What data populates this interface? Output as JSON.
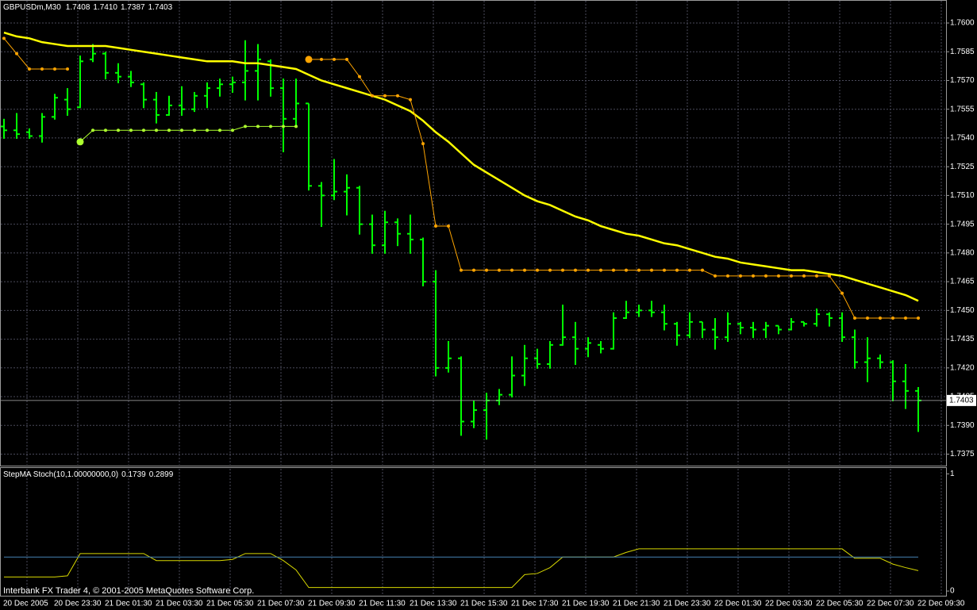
{
  "chart_data": [
    {
      "type": "ohlc",
      "title": "GBPUSDm,M30",
      "last_labels": [
        "1.7408",
        "1.7410",
        "1.7387",
        "1.7403"
      ],
      "footer": "Interbank FX Trader 4, © 2001-2005 MetaQuotes Software Corp.",
      "bar_color": "#00ff00",
      "grid": true,
      "categories": [
        "20 Dec 2005",
        null,
        null,
        null,
        "20 Dec 23:30",
        null,
        null,
        null,
        "21 Dec 01:30",
        null,
        null,
        null,
        "21 Dec 03:30",
        null,
        null,
        null,
        "21 Dec 05:30",
        null,
        null,
        null,
        "21 Dec 07:30",
        null,
        null,
        null,
        "21 Dec 09:30",
        null,
        null,
        null,
        "21 Dec 11:30",
        null,
        null,
        null,
        "21 Dec 13:30",
        null,
        null,
        null,
        "21 Dec 15:30",
        null,
        null,
        null,
        "21 Dec 17:30",
        null,
        null,
        null,
        "21 Dec 19:30",
        null,
        null,
        null,
        "21 Dec 21:30",
        null,
        null,
        null,
        "21 Dec 23:30",
        null,
        null,
        null,
        "22 Dec 01:30",
        null,
        null,
        null,
        "22 Dec 03:30",
        null,
        null,
        null,
        "22 Dec 05:30",
        null,
        null,
        null,
        "22 Dec 07:30",
        null,
        null,
        null,
        "22 Dec 09:30"
      ],
      "ohlc": [
        [
          1.7546,
          1.755,
          1.754,
          1.7544
        ],
        [
          1.7544,
          1.7553,
          1.754,
          1.7542
        ],
        [
          1.7543,
          1.7545,
          1.754,
          1.7541
        ],
        [
          1.7541,
          1.7553,
          1.7538,
          1.7551
        ],
        [
          1.7551,
          1.7563,
          1.755,
          1.7561
        ],
        [
          1.756,
          1.7566,
          1.7552,
          1.7555
        ],
        [
          1.7556,
          1.7583,
          1.7556,
          1.758
        ],
        [
          1.7581,
          1.7589,
          1.758,
          1.7584
        ],
        [
          1.7584,
          1.7585,
          1.7571,
          1.7574
        ],
        [
          1.7574,
          1.7579,
          1.7569,
          1.7572
        ],
        [
          1.7572,
          1.7575,
          1.7567,
          1.7569
        ],
        [
          1.7568,
          1.7569,
          1.7556,
          1.756
        ],
        [
          1.756,
          1.7564,
          1.7548,
          1.7552
        ],
        [
          1.7552,
          1.7562,
          1.7552,
          1.7557
        ],
        [
          1.7557,
          1.7567,
          1.7552,
          1.7555
        ],
        [
          1.7555,
          1.7564,
          1.7554,
          1.7562
        ],
        [
          1.7562,
          1.7569,
          1.7556,
          1.7566
        ],
        [
          1.7566,
          1.7571,
          1.7562,
          1.7568
        ],
        [
          1.7568,
          1.7572,
          1.7564,
          1.7569
        ],
        [
          1.7569,
          1.7591,
          1.756,
          1.7575
        ],
        [
          1.7575,
          1.7589,
          1.756,
          1.7581
        ],
        [
          1.758,
          1.7581,
          1.7562,
          1.7566
        ],
        [
          1.7566,
          1.7571,
          1.7533,
          1.755
        ],
        [
          1.755,
          1.7571,
          1.7546,
          1.7558
        ],
        [
          1.7558,
          1.7558,
          1.7513,
          1.7515
        ],
        [
          1.7515,
          1.7517,
          1.7494,
          1.751
        ],
        [
          1.751,
          1.7529,
          1.7508,
          1.7512
        ],
        [
          1.7512,
          1.7521,
          1.75,
          1.7514
        ],
        [
          1.7514,
          1.7515,
          1.749,
          1.7495
        ],
        [
          1.7495,
          1.75,
          1.748,
          1.7484
        ],
        [
          1.7484,
          1.7502,
          1.748,
          1.7496
        ],
        [
          1.7496,
          1.7498,
          1.7484,
          1.749
        ],
        [
          1.749,
          1.75,
          1.748,
          1.7487
        ],
        [
          1.7487,
          1.7488,
          1.7463,
          1.7465
        ],
        [
          1.7465,
          1.7471,
          1.7416,
          1.742
        ],
        [
          1.742,
          1.7434,
          1.7418,
          1.7425
        ],
        [
          1.7425,
          1.7426,
          1.7385,
          1.7392
        ],
        [
          1.7392,
          1.7403,
          1.7389,
          1.7398
        ],
        [
          1.7398,
          1.7407,
          1.7383,
          1.7403
        ],
        [
          1.7403,
          1.7409,
          1.7401,
          1.7406
        ],
        [
          1.7406,
          1.7426,
          1.7405,
          1.7416
        ],
        [
          1.7416,
          1.7432,
          1.7411,
          1.7425
        ],
        [
          1.7425,
          1.743,
          1.742,
          1.7422
        ],
        [
          1.7422,
          1.7434,
          1.742,
          1.7432
        ],
        [
          1.7432,
          1.7453,
          1.7432,
          1.7436
        ],
        [
          1.7436,
          1.7444,
          1.7422,
          1.743
        ],
        [
          1.743,
          1.7436,
          1.7426,
          1.7433
        ],
        [
          1.7432,
          1.7434,
          1.7428,
          1.743
        ],
        [
          1.743,
          1.7449,
          1.743,
          1.7446
        ],
        [
          1.7446,
          1.7455,
          1.7446,
          1.7449
        ],
        [
          1.7449,
          1.7453,
          1.7447,
          1.745
        ],
        [
          1.745,
          1.7455,
          1.7447,
          1.7449
        ],
        [
          1.7449,
          1.7453,
          1.744,
          1.7443
        ],
        [
          1.7443,
          1.7444,
          1.7432,
          1.7437
        ],
        [
          1.7437,
          1.7449,
          1.7436,
          1.7444
        ],
        [
          1.7444,
          1.7444,
          1.7436,
          1.744
        ],
        [
          1.744,
          1.7446,
          1.743,
          1.7436
        ],
        [
          1.7436,
          1.7449,
          1.7434,
          1.7443
        ],
        [
          1.7443,
          1.7444,
          1.7438,
          1.7441
        ],
        [
          1.7441,
          1.7444,
          1.7436,
          1.744
        ],
        [
          1.744,
          1.7444,
          1.7436,
          1.7442
        ],
        [
          1.7442,
          1.7442,
          1.7438,
          1.744
        ],
        [
          1.744,
          1.7446,
          1.744,
          1.7444
        ],
        [
          1.7444,
          1.7444,
          1.7442,
          1.7443
        ],
        [
          1.7443,
          1.7451,
          1.7442,
          1.7448
        ],
        [
          1.7448,
          1.7449,
          1.7442,
          1.7446
        ],
        [
          1.7446,
          1.7449,
          1.7434,
          1.7436
        ],
        [
          1.7436,
          1.744,
          1.742,
          1.7423
        ],
        [
          1.7423,
          1.7436,
          1.7413,
          1.7425
        ],
        [
          1.7425,
          1.7427,
          1.742,
          1.7423
        ],
        [
          1.7423,
          1.7424,
          1.7403,
          1.7413
        ],
        [
          1.7413,
          1.7422,
          1.7399,
          1.7408
        ],
        [
          1.7408,
          1.741,
          1.7387,
          1.7403
        ]
      ],
      "lines": [
        {
          "color": "#ffff00",
          "markers": false,
          "values": [
            1.7595,
            1.7593,
            1.7592,
            1.759,
            1.7589,
            1.7588,
            1.7588,
            1.7588,
            1.7588,
            1.7587,
            1.7586,
            1.7585,
            1.7584,
            1.7583,
            1.7582,
            1.7581,
            1.758,
            1.758,
            1.758,
            1.7579,
            1.7579,
            1.7578,
            1.7577,
            1.7576,
            1.7573,
            1.757,
            1.7568,
            1.7566,
            1.7564,
            1.7562,
            1.756,
            1.7557,
            1.7554,
            1.7549,
            1.7543,
            1.7538,
            1.7532,
            1.7526,
            1.7522,
            1.7518,
            1.7514,
            1.751,
            1.7507,
            1.7505,
            1.7502,
            1.7499,
            1.7497,
            1.7494,
            1.7492,
            1.749,
            1.7489,
            1.7487,
            1.7485,
            1.7484,
            1.7482,
            1.748,
            1.7478,
            1.7477,
            1.7475,
            1.7474,
            1.7473,
            1.7472,
            1.7471,
            1.7471,
            1.747,
            1.7469,
            1.7468,
            1.7466,
            1.7464,
            1.7462,
            1.746,
            1.7458,
            1.7455
          ]
        },
        {
          "color": "#adff2f",
          "markers": true,
          "values": [
            null,
            null,
            null,
            null,
            null,
            null,
            1.7538,
            1.7544,
            1.7544,
            1.7544,
            1.7544,
            1.7544,
            1.7544,
            1.7544,
            1.7544,
            1.7544,
            1.7544,
            1.7544,
            1.7544,
            1.7546,
            1.7546,
            1.7546,
            1.7546,
            1.7546,
            null,
            null,
            null,
            null,
            null,
            null,
            null,
            null,
            null,
            null,
            null,
            null,
            null,
            null,
            null,
            null,
            null,
            null,
            null,
            null,
            null,
            null,
            null,
            null,
            null,
            null,
            null,
            null,
            null,
            null,
            null,
            null,
            null,
            null,
            null,
            null,
            null,
            null,
            null,
            null,
            null,
            null,
            null,
            null,
            null,
            null,
            null,
            null,
            null
          ]
        },
        {
          "color": "#ffa500",
          "markers": true,
          "values": [
            1.7592,
            1.7584,
            1.7576,
            1.7576,
            1.7576,
            1.7576,
            null,
            null,
            null,
            null,
            null,
            null,
            null,
            null,
            null,
            null,
            null,
            null,
            null,
            null,
            null,
            null,
            null,
            null,
            1.7581,
            1.7581,
            1.7581,
            1.7581,
            1.7572,
            1.7562,
            1.7562,
            1.7562,
            1.756,
            1.7537,
            1.7494,
            1.7494,
            1.7471,
            1.7471,
            1.7471,
            1.7471,
            1.7471,
            1.7471,
            1.7471,
            1.7471,
            1.7471,
            1.7471,
            1.7471,
            1.7471,
            1.7471,
            1.7471,
            1.7471,
            1.7471,
            1.7471,
            1.7471,
            1.7471,
            1.7471,
            1.7468,
            1.7468,
            1.7468,
            1.7468,
            1.7468,
            1.7468,
            1.7468,
            1.7468,
            1.7468,
            1.7468,
            1.7459,
            1.7446,
            1.7446,
            1.7446,
            1.7446,
            1.7446,
            1.7446
          ]
        }
      ],
      "ylim": [
        1.7369,
        1.7612
      ],
      "yticks": [
        {
          "value": 1.76,
          "label": "1.7600"
        },
        1.7585,
        {
          "value": 1.757,
          "label": "1.7570"
        },
        1.7555,
        {
          "value": 1.754,
          "label": "1.7540"
        },
        1.7525,
        {
          "value": 1.751,
          "label": "1.7510"
        },
        1.7495,
        {
          "value": 1.748,
          "label": "1.7480"
        },
        1.7465,
        {
          "value": 1.745,
          "label": "1.7450"
        },
        1.7435,
        {
          "value": 1.742,
          "label": "1.7420"
        },
        1.7405,
        {
          "value": 1.739,
          "label": "1.7390"
        },
        1.7375
      ]
    },
    {
      "type": "line",
      "title": "StepMA Stoch(10,1.00000000,0)",
      "grid": true,
      "series": [
        {
          "color": "#d8d800",
          "values": [
            0.12,
            0.12,
            0.12,
            0.12,
            0.12,
            0.13,
            0.32,
            0.32,
            0.32,
            0.32,
            0.32,
            0.32,
            0.26,
            0.26,
            0.26,
            0.26,
            0.26,
            0.26,
            0.27,
            0.32,
            0.32,
            0.32,
            0.26,
            0.18,
            0.03,
            0.03,
            0.03,
            0.03,
            0.03,
            0.03,
            0.03,
            0.03,
            0.03,
            0.03,
            0.03,
            0.03,
            0.03,
            0.03,
            0.03,
            0.03,
            0.03,
            0.14,
            0.15,
            0.2,
            0.29,
            0.29,
            0.29,
            0.29,
            0.29,
            0.33,
            0.36,
            0.36,
            0.36,
            0.36,
            0.36,
            0.36,
            0.36,
            0.36,
            0.36,
            0.36,
            0.36,
            0.36,
            0.36,
            0.36,
            0.36,
            0.36,
            0.36,
            0.28,
            0.28,
            0.28,
            0.23,
            0.2,
            0.1739
          ]
        },
        {
          "color": "#4682b4",
          "values": [
            0.2899,
            0.2899,
            0.2899,
            0.2899,
            0.2899,
            0.2899,
            0.2899,
            0.2899,
            0.2899,
            0.2899,
            0.2899,
            0.2899,
            0.2899,
            0.2899,
            0.2899,
            0.2899,
            0.2899,
            0.2899,
            0.2899,
            0.2899,
            0.2899,
            0.2899,
            0.2899,
            0.2899,
            0.2899,
            0.2899,
            0.2899,
            0.2899,
            0.2899,
            0.2899,
            0.2899,
            0.2899,
            0.2899,
            0.2899,
            0.2899,
            0.2899,
            0.2899,
            0.2899,
            0.2899,
            0.2899,
            0.2899,
            0.2899,
            0.2899,
            0.2899,
            0.2899,
            0.2899,
            0.2899,
            0.2899,
            0.2899,
            0.2899,
            0.2899,
            0.2899,
            0.2899,
            0.2899,
            0.2899,
            0.2899,
            0.2899,
            0.2899,
            0.2899,
            0.2899,
            0.2899,
            0.2899,
            0.2899,
            0.2899,
            0.2899,
            0.2899,
            0.2899,
            0.2899,
            0.2899,
            0.2899,
            0.2899,
            0.2899,
            0.2899
          ]
        }
      ],
      "ylim": [
        -0.04,
        1.05
      ],
      "yticks": [
        0,
        1
      ]
    }
  ]
}
